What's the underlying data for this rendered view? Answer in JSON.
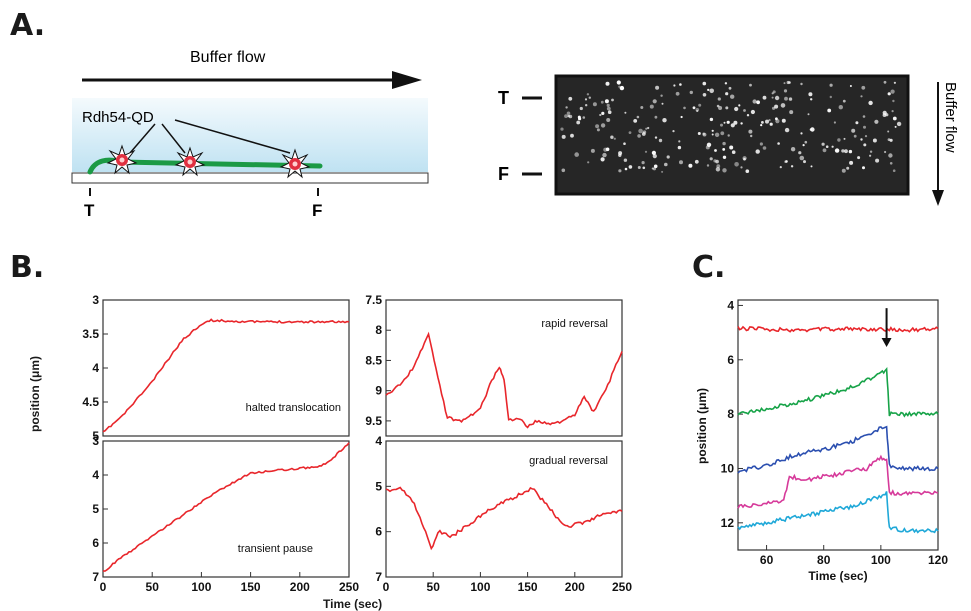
{
  "panels": {
    "a": "A.",
    "b": "B.",
    "c": "C."
  },
  "schematic": {
    "flow_label": "Buffer flow",
    "protein_label": "Rdh54-QD",
    "tether_mark": "T",
    "free_mark": "F"
  },
  "image_panel": {
    "tether_mark": "T",
    "free_mark": "F",
    "flow_label": "Buffer flow"
  },
  "colors": {
    "trace_red": "#e8262b",
    "trace_green": "#17a348",
    "trace_blue": "#2b4fb0",
    "trace_magenta": "#d63a9a",
    "trace_cyan": "#1fa8d8",
    "dna": "#1b9a45",
    "qd": "#e03040",
    "buffer": "#cfe9f5"
  },
  "chart_data": [
    {
      "type": "line",
      "annotation": "halted translocation",
      "ylabel": "",
      "xlim": [
        0,
        250
      ],
      "ylim": [
        3,
        5
      ],
      "y_inverted": true,
      "xticks": [],
      "yticks": [
        "3",
        "3.5",
        "4",
        "4.5",
        "5"
      ],
      "series": [
        {
          "color": "#e8262b",
          "x": [
            0,
            20,
            50,
            80,
            100,
            110,
            150,
            200,
            250
          ],
          "y": [
            4.95,
            4.7,
            4.2,
            3.6,
            3.35,
            3.3,
            3.32,
            3.32,
            3.32
          ]
        }
      ]
    },
    {
      "type": "line",
      "annotation": "rapid reversal",
      "xlim": [
        0,
        250
      ],
      "ylim": [
        7.5,
        9.75
      ],
      "y_inverted": true,
      "xticks": [],
      "yticks": [
        "7.5",
        "8",
        "8.5",
        "9",
        "9.5"
      ],
      "series": [
        {
          "color": "#e8262b",
          "x": [
            0,
            15,
            30,
            45,
            55,
            65,
            80,
            100,
            110,
            120,
            125,
            130,
            140,
            150,
            160,
            180,
            200,
            210,
            220,
            235,
            250
          ],
          "y": [
            9.1,
            8.9,
            8.6,
            8.05,
            8.8,
            9.45,
            9.5,
            9.3,
            8.9,
            8.6,
            8.8,
            9.5,
            9.45,
            9.6,
            9.5,
            9.55,
            9.4,
            9.1,
            9.35,
            8.9,
            8.35
          ]
        }
      ]
    },
    {
      "type": "line",
      "annotation": "transient pause",
      "ylabel": "position (μm)",
      "xlim": [
        0,
        250
      ],
      "ylim": [
        3,
        7
      ],
      "y_inverted": true,
      "xticks": [
        "0",
        "50",
        "100",
        "150",
        "200",
        "250"
      ],
      "yticks": [
        "3",
        "4",
        "5",
        "6",
        "7"
      ],
      "series": [
        {
          "color": "#e8262b",
          "x": [
            0,
            20,
            50,
            80,
            110,
            140,
            150,
            180,
            200,
            220,
            230,
            250
          ],
          "y": [
            6.85,
            6.4,
            5.8,
            5.2,
            4.6,
            4.1,
            3.95,
            3.85,
            3.8,
            3.75,
            3.6,
            3.05
          ]
        }
      ]
    },
    {
      "type": "line",
      "annotation": "gradual reversal",
      "xlim": [
        0,
        250
      ],
      "ylim": [
        4,
        7
      ],
      "y_inverted": true,
      "xticks": [
        "0",
        "50",
        "100",
        "150",
        "200",
        "250"
      ],
      "yticks": [
        "4",
        "5",
        "6",
        "7"
      ],
      "series": [
        {
          "color": "#e8262b",
          "x": [
            0,
            15,
            30,
            40,
            48,
            55,
            70,
            90,
            110,
            130,
            155,
            170,
            190,
            210,
            230,
            250
          ],
          "y": [
            5.1,
            5.0,
            5.4,
            5.9,
            6.4,
            6.0,
            6.1,
            5.8,
            5.5,
            5.3,
            5.05,
            5.4,
            5.9,
            5.8,
            5.6,
            5.55
          ]
        }
      ]
    },
    {
      "type": "line",
      "xlabel": "Time (sec)",
      "ylabel": "position (μm)",
      "xlim": [
        50,
        120
      ],
      "ylim": [
        3.8,
        13
      ],
      "y_inverted": true,
      "xticks": [
        "60",
        "80",
        "100",
        "120"
      ],
      "yticks": [
        "4",
        "6",
        "8",
        "10",
        "12"
      ],
      "arrow_x": 102,
      "series": [
        {
          "color": "#e8262b",
          "x": [
            50,
            70,
            90,
            110,
            120
          ],
          "y": [
            4.85,
            4.9,
            4.85,
            4.9,
            4.85
          ]
        },
        {
          "color": "#17a348",
          "x": [
            50,
            60,
            70,
            80,
            90,
            100,
            102,
            103,
            110,
            120
          ],
          "y": [
            8.0,
            7.8,
            7.6,
            7.3,
            7.0,
            6.5,
            6.4,
            8.0,
            8.0,
            8.0
          ]
        },
        {
          "color": "#2b4fb0",
          "x": [
            50,
            60,
            70,
            80,
            90,
            100,
            102,
            103,
            110,
            120
          ],
          "y": [
            10.1,
            9.9,
            9.5,
            9.3,
            9.0,
            8.5,
            8.5,
            9.9,
            10.0,
            10.0
          ]
        },
        {
          "color": "#d63a9a",
          "x": [
            50,
            60,
            66,
            68,
            75,
            85,
            95,
            100,
            102,
            103,
            110,
            120
          ],
          "y": [
            11.4,
            11.3,
            11.2,
            10.3,
            10.4,
            10.2,
            10.0,
            9.6,
            9.7,
            10.9,
            10.9,
            10.9
          ]
        },
        {
          "color": "#1fa8d8",
          "x": [
            50,
            60,
            70,
            80,
            90,
            100,
            102,
            103,
            110,
            120
          ],
          "y": [
            12.2,
            12.0,
            11.8,
            11.6,
            11.4,
            11.0,
            10.9,
            12.2,
            12.3,
            12.3
          ]
        }
      ]
    }
  ],
  "b_xlabel": "Time (sec)"
}
